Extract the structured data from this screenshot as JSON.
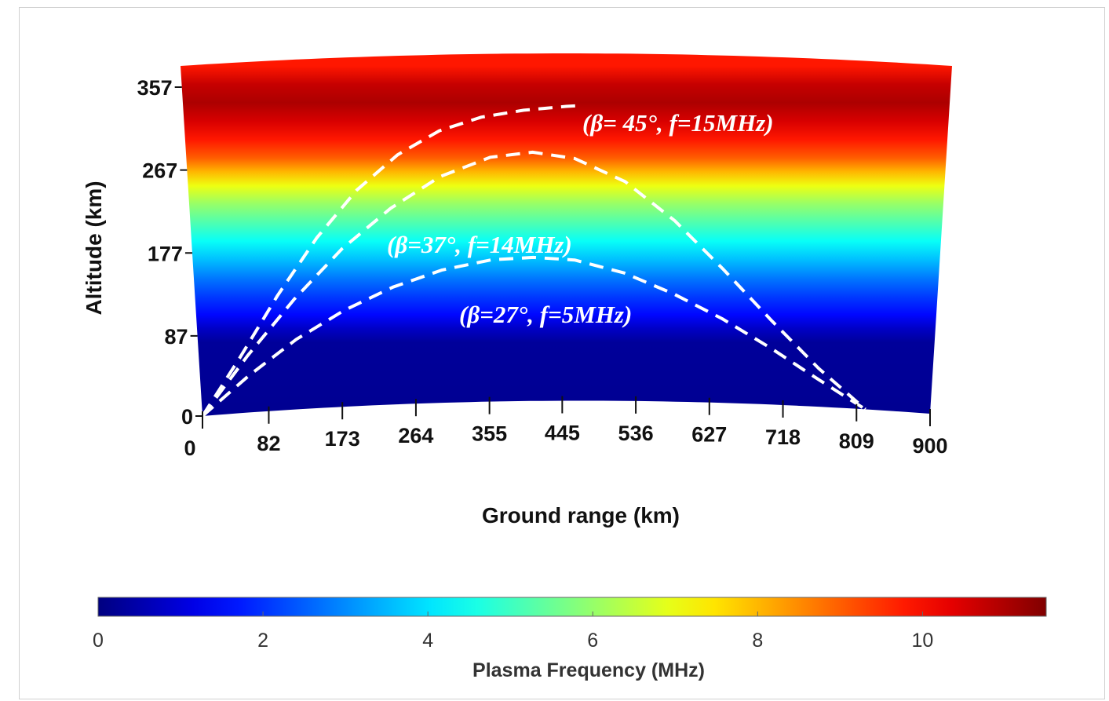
{
  "chart_data": {
    "type": "heatmap",
    "title": "",
    "xlabel": "Ground range (km)",
    "ylabel": "Altitude (km)",
    "x_ticks": [
      0,
      82,
      173,
      264,
      355,
      445,
      536,
      627,
      718,
      809,
      900
    ],
    "y_ticks": [
      0,
      87,
      177,
      267,
      357
    ],
    "xlim": [
      0,
      900
    ],
    "ylim": [
      0,
      380
    ],
    "colorbar": {
      "label": "Plasma Frequency (MHz)",
      "ticks": [
        0,
        2,
        4,
        6,
        8,
        10
      ],
      "range": [
        0,
        11.5
      ],
      "colormap": "jet"
    },
    "plasma_frequency_profile": {
      "altitude_km": [
        0,
        80,
        95,
        110,
        130,
        150,
        170,
        190,
        210,
        230,
        250,
        265,
        280,
        300,
        320,
        340,
        360,
        380
      ],
      "frequency_mhz": [
        0.2,
        0.3,
        0.8,
        1.5,
        2.1,
        2.8,
        3.6,
        4.4,
        5.2,
        6.0,
        7.0,
        8.0,
        9.0,
        9.8,
        10.5,
        11.0,
        10.7,
        9.8
      ]
    },
    "series": [
      {
        "name": "(β= 45°, f=15MHz)",
        "x": [
          0,
          50,
          100,
          150,
          200,
          250,
          300,
          350,
          400,
          450,
          470
        ],
        "y": [
          0,
          60,
          125,
          185,
          235,
          272,
          297,
          311,
          318,
          322,
          323
        ]
      },
      {
        "name": "(β=37°, f=14MHz)",
        "x": [
          0,
          60,
          120,
          180,
          240,
          300,
          360,
          410,
          460,
          520,
          580,
          640,
          700,
          760,
          820
        ],
        "y": [
          0,
          62,
          120,
          172,
          214,
          247,
          267,
          272,
          265,
          240,
          198,
          146,
          92,
          42,
          0
        ]
      },
      {
        "name": "(β=27°, f=5MHz)",
        "x": [
          0,
          60,
          120,
          180,
          240,
          300,
          360,
          410,
          460,
          520,
          580,
          640,
          700,
          760,
          820
        ],
        "y": [
          0,
          40,
          76,
          105,
          128,
          145,
          155,
          157,
          154,
          140,
          118,
          92,
          62,
          30,
          0
        ]
      }
    ]
  }
}
